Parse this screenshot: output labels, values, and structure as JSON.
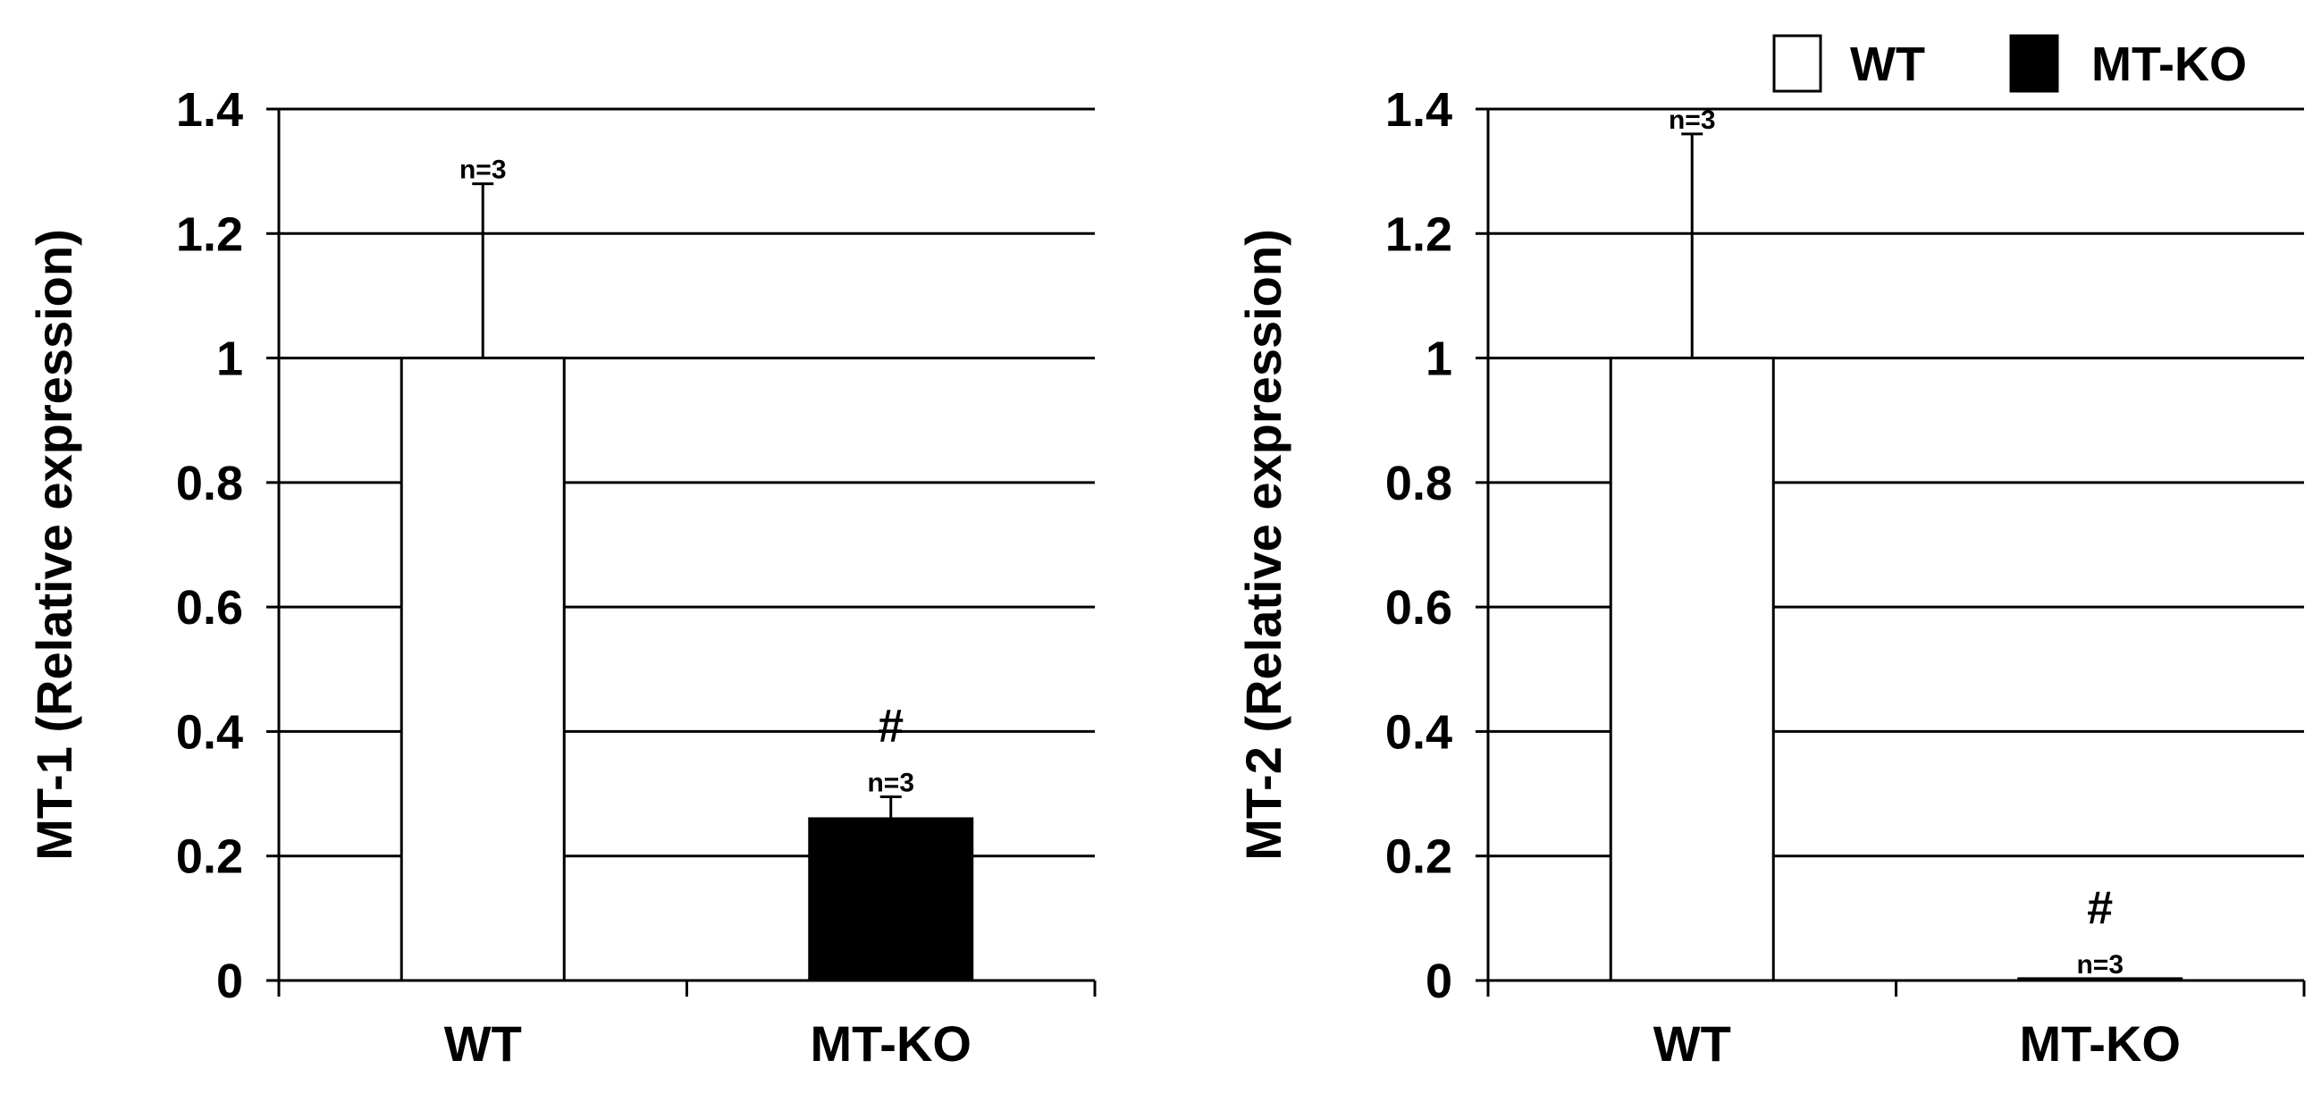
{
  "chart_data": [
    {
      "type": "bar",
      "title": "",
      "ylabel": "MT-1 (Relative expression)",
      "xlabel": "",
      "ylim": [
        0,
        1.4
      ],
      "yticks": [
        "0",
        "0.2",
        "0.4",
        "0.6",
        "0.8",
        "1",
        "1.2",
        "1.4"
      ],
      "grid": true,
      "categories": [
        "WT",
        "MT-KO"
      ],
      "values": [
        1.0,
        0.26
      ],
      "errors": [
        0.28,
        0.035
      ],
      "fills": [
        "#ffffff",
        "#000000"
      ],
      "n_labels": [
        "n=3",
        "n=3"
      ],
      "significance": [
        "",
        "#"
      ]
    },
    {
      "type": "bar",
      "title": "",
      "ylabel": "MT-2 (Relative expression)",
      "xlabel": "",
      "ylim": [
        0,
        1.4
      ],
      "yticks": [
        "0",
        "0.2",
        "0.4",
        "0.6",
        "0.8",
        "1",
        "1.2",
        "1.4"
      ],
      "grid": true,
      "categories": [
        "WT",
        "MT-KO"
      ],
      "values": [
        1.0,
        0.003
      ],
      "errors": [
        0.36,
        0.0
      ],
      "fills": [
        "#ffffff",
        "#000000"
      ],
      "n_labels": [
        "n=3",
        "n=3"
      ],
      "significance": [
        "",
        "#"
      ]
    }
  ],
  "legend": {
    "placement": "top-right",
    "items": [
      {
        "label": "WT",
        "color": "#ffffff"
      },
      {
        "label": "MT-KO",
        "color": "#000000"
      }
    ]
  }
}
